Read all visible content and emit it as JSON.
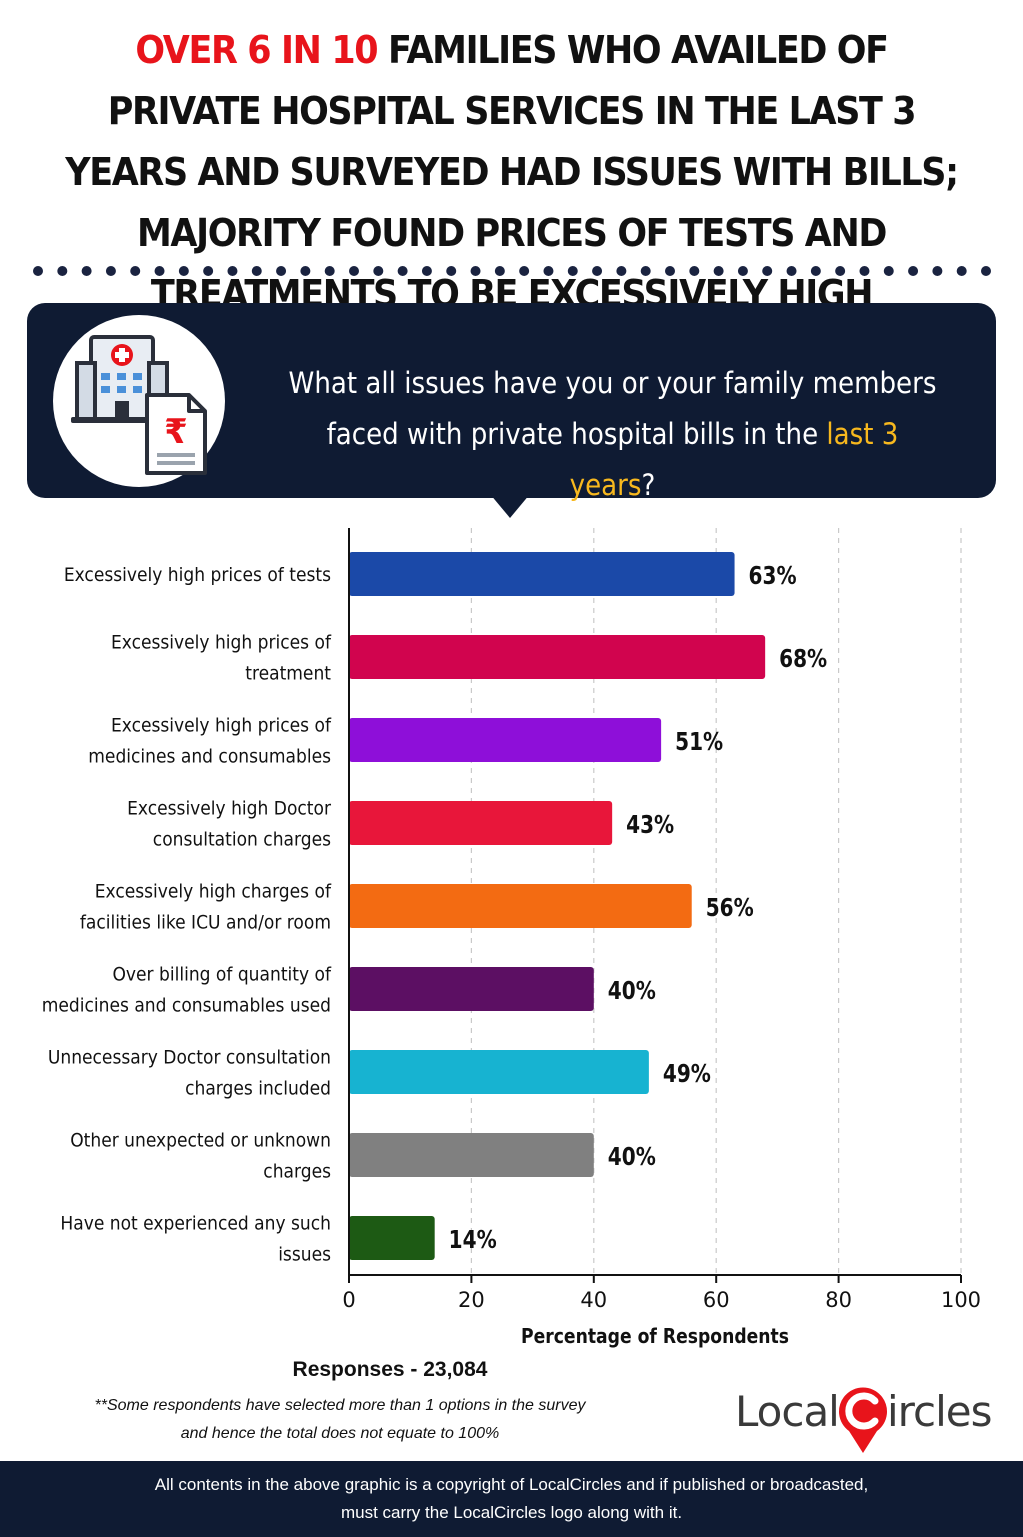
{
  "headline": {
    "highlight": "OVER 6 IN 10",
    "rest": " FAMILIES WHO AVAILED OF PRIVATE HOSPITAL SERVICES IN THE LAST 3 YEARS AND SURVEYED HAD ISSUES WITH BILLS; MAJORITY FOUND PRICES OF TESTS AND TREATMENTS TO BE EXCESSIVELY HIGH"
  },
  "question": {
    "text": "What all issues have you or your family members faced with private hospital bills in the ",
    "highlight": "last 3 years",
    "suffix": "?"
  },
  "icons": {
    "banner_icon": "hospital-bill-icon",
    "logo_pin": "location-pin-icon"
  },
  "colors": {
    "headline_accent": "#e8141b",
    "question_accent": "#f7b81e",
    "banner_bg": "#0f1b33"
  },
  "chart_data": {
    "type": "bar",
    "orientation": "horizontal",
    "xlabel": "Percentage of Respondents",
    "xlim": [
      0,
      100
    ],
    "xticks": [
      0,
      20,
      40,
      60,
      80,
      100
    ],
    "grid": true,
    "categories": [
      [
        "Excessively high prices of tests"
      ],
      [
        "Excessively high prices of",
        "treatment"
      ],
      [
        "Excessively high prices of",
        "medicines and consumables"
      ],
      [
        "Excessively high Doctor",
        "consultation charges"
      ],
      [
        "Excessively high charges of",
        "facilities like ICU and/or room"
      ],
      [
        "Over billing of quantity of",
        "medicines and consumables used"
      ],
      [
        "Unnecessary Doctor consultation",
        "charges included"
      ],
      [
        "Other unexpected or unknown",
        "charges"
      ],
      [
        "Have not experienced any such",
        "issues"
      ]
    ],
    "values": [
      63,
      68,
      51,
      43,
      56,
      40,
      49,
      40,
      14
    ],
    "value_labels": [
      "63%",
      "68%",
      "51%",
      "43%",
      "56%",
      "40%",
      "49%",
      "40%",
      "14%"
    ],
    "bar_colors": [
      "#1b49a8",
      "#d1044e",
      "#8e0fd9",
      "#e8163a",
      "#f36b12",
      "#5c0f63",
      "#17b3d1",
      "#808080",
      "#1d5a14"
    ]
  },
  "responses": "Responses - 23,084",
  "footnote": {
    "line1": "**Some respondents have selected more than 1 options in the survey",
    "line2": "and hence the total does not equate to 100%"
  },
  "logo": {
    "part1": "Local",
    "part2": "ircles"
  },
  "footer": {
    "line1": "All contents in the above graphic is a copyright of LocalCircles and if published or broadcasted,",
    "line2": "must carry the LocalCircles logo along with it."
  }
}
